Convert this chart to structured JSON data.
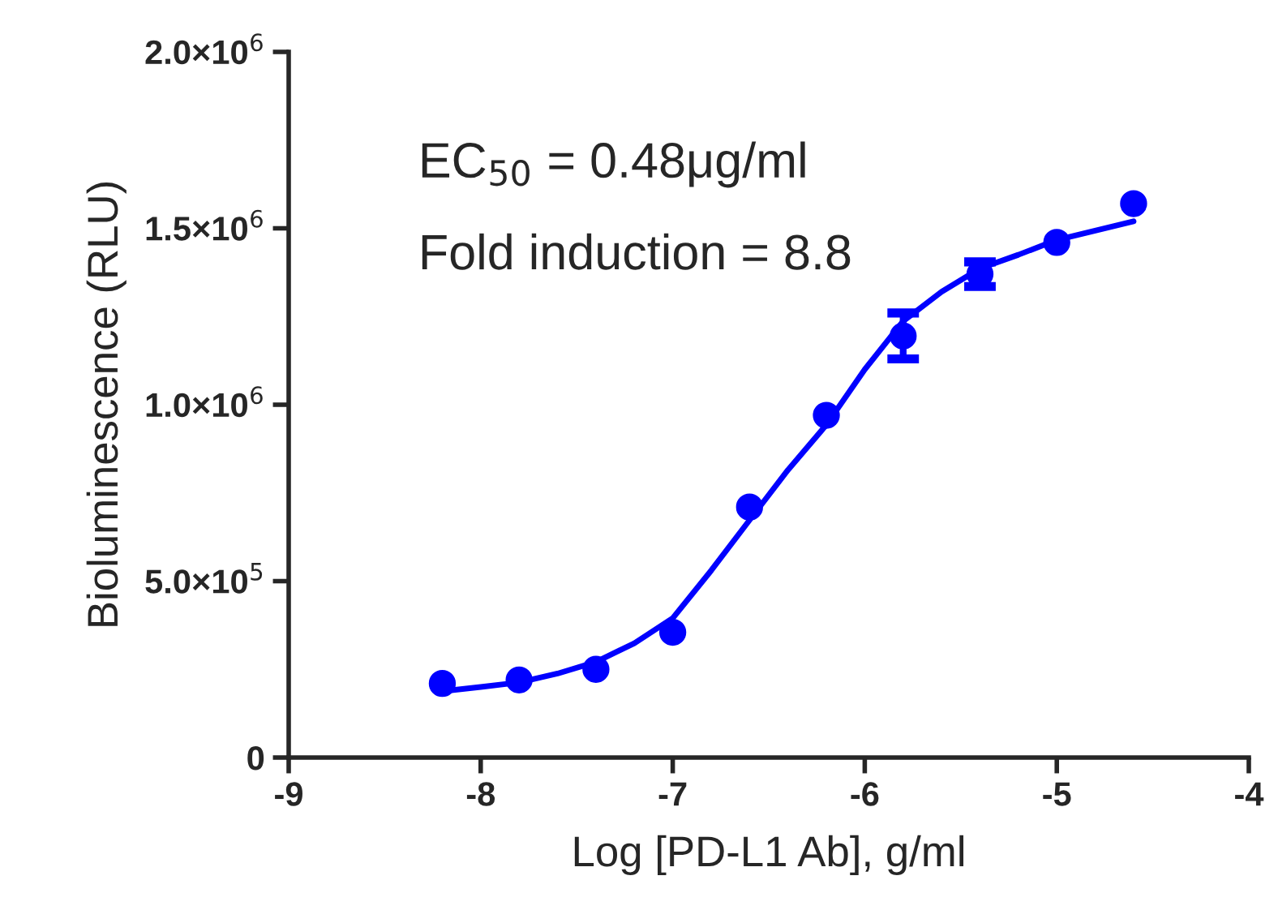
{
  "chart_data": {
    "type": "scatter",
    "xlabel": "Log [PD-L1 Ab], g/ml",
    "ylabel": "Bioluminescence (RLU)",
    "annotations": [
      "EC$_{50}$ = 0.48μg/ml",
      "Fold induction = 8.8"
    ],
    "xlim": [
      -9,
      -4
    ],
    "xticks": [
      -9,
      -8,
      -7,
      -6,
      -5,
      -4
    ],
    "ylim": [
      0,
      2000000
    ],
    "yticks": [
      {
        "value": 0,
        "label": "0"
      },
      {
        "value": 500000,
        "label": "5.0×10$^{5}$"
      },
      {
        "value": 1000000,
        "label": "1.0×10$^{6}$"
      },
      {
        "value": 1500000,
        "label": "1.5×10$^{6}$"
      },
      {
        "value": 2000000,
        "label": "2.0×10$^{6}$"
      }
    ],
    "grid": false,
    "legend": false,
    "series": [
      {
        "color": "#0000ff",
        "marker": "circle",
        "x": [
          -8.2,
          -7.8,
          -7.4,
          -7.0,
          -6.6,
          -6.2,
          -5.8,
          -5.4,
          -5.0,
          -4.6
        ],
        "values": [
          210000,
          220000,
          250000,
          355000,
          710000,
          970000,
          1195000,
          1370000,
          1460000,
          1570000
        ],
        "errors": [
          null,
          null,
          null,
          null,
          null,
          null,
          65000,
          35000,
          null,
          null
        ]
      },
      {
        "type": "line",
        "color": "#0000ff",
        "line_style": "solid",
        "x": [
          -8.2,
          -8.0,
          -7.8,
          -7.6,
          -7.4,
          -7.2,
          -7.0,
          -6.8,
          -6.6,
          -6.4,
          -6.2,
          -6.0,
          -5.8,
          -5.6,
          -5.4,
          -5.2,
          -5.0,
          -4.6
        ],
        "values": [
          188000,
          200000,
          213000,
          238000,
          271000,
          324000,
          395000,
          530000,
          673000,
          815000,
          943000,
          1100000,
          1237000,
          1320000,
          1386000,
          1425000,
          1467000,
          1520000
        ]
      }
    ]
  }
}
